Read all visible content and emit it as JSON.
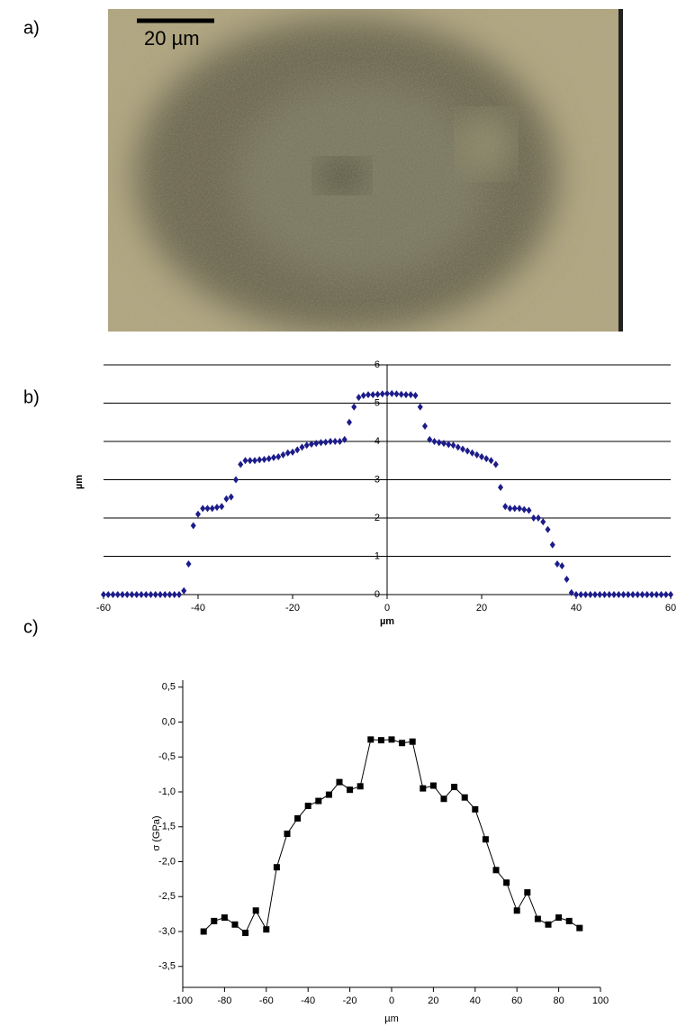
{
  "panels": [
    "a)",
    "b)",
    "c)"
  ],
  "scale_bar": "20 µm",
  "chart_data": [
    {
      "type": "scatter",
      "x_label": "µm",
      "y_label": "µm",
      "xlim": [
        -60,
        60
      ],
      "ylim": [
        0,
        6
      ],
      "xticks": [
        -60,
        -40,
        -20,
        0,
        20,
        40,
        60
      ],
      "yticks": [
        0,
        1,
        2,
        3,
        4,
        5,
        6
      ],
      "grid": true,
      "axes_at_origin": true,
      "marker": "diamond",
      "line": false,
      "x": [
        -60,
        -59,
        -58,
        -57,
        -56,
        -55,
        -54,
        -53,
        -52,
        -51,
        -50,
        -49,
        -48,
        -47,
        -46,
        -45,
        -44,
        -43,
        -42,
        -41,
        -40,
        -39,
        -38,
        -37,
        -36,
        -35,
        -34,
        -33,
        -32,
        -31,
        -30,
        -29,
        -28,
        -27,
        -26,
        -25,
        -24,
        -23,
        -22,
        -21,
        -20,
        -19,
        -18,
        -17,
        -16,
        -15,
        -14,
        -13,
        -12,
        -11,
        -10,
        -9,
        -8,
        -7,
        -6,
        -5,
        -4,
        -3,
        -2,
        -1,
        0,
        1,
        2,
        3,
        4,
        5,
        6,
        7,
        8,
        9,
        10,
        11,
        12,
        13,
        14,
        15,
        16,
        17,
        18,
        19,
        20,
        21,
        22,
        23,
        24,
        25,
        26,
        27,
        28,
        29,
        30,
        31,
        32,
        33,
        34,
        35,
        36,
        37,
        38,
        39,
        40,
        41,
        42,
        43,
        44,
        45,
        46,
        47,
        48,
        49,
        50,
        51,
        52,
        53,
        54,
        55,
        56,
        57,
        58,
        59,
        60
      ],
      "series": [
        {
          "color": "#1c1c8a",
          "values": [
            0,
            0,
            0,
            0,
            0,
            0,
            0,
            0,
            0,
            0,
            0,
            0,
            0,
            0,
            0,
            0,
            0,
            0.1,
            0.8,
            1.8,
            2.1,
            2.25,
            2.25,
            2.25,
            2.28,
            2.3,
            2.5,
            2.55,
            3.0,
            3.4,
            3.5,
            3.5,
            3.5,
            3.52,
            3.53,
            3.55,
            3.58,
            3.6,
            3.65,
            3.7,
            3.72,
            3.78,
            3.85,
            3.9,
            3.93,
            3.95,
            3.97,
            3.98,
            4.0,
            4.0,
            4.0,
            4.05,
            4.5,
            4.9,
            5.15,
            5.2,
            5.22,
            5.22,
            5.23,
            5.24,
            5.25,
            5.25,
            5.24,
            5.23,
            5.22,
            5.22,
            5.2,
            4.9,
            4.4,
            4.05,
            4.0,
            3.97,
            3.95,
            3.92,
            3.9,
            3.85,
            3.8,
            3.75,
            3.7,
            3.65,
            3.6,
            3.55,
            3.5,
            3.4,
            2.8,
            2.3,
            2.25,
            2.25,
            2.25,
            2.22,
            2.2,
            2.0,
            2.0,
            1.9,
            1.7,
            1.3,
            0.8,
            0.75,
            0.4,
            0.05,
            0,
            0,
            0,
            0,
            0,
            0,
            0,
            0,
            0,
            0,
            0,
            0,
            0,
            0,
            0,
            0,
            0,
            0,
            0,
            0,
            0
          ]
        }
      ]
    },
    {
      "type": "line",
      "x_label": "µm",
      "y_label": "σ (GPa)",
      "xlim": [
        -100,
        100
      ],
      "ylim": [
        -3.8,
        0.6
      ],
      "xticks": [
        -100,
        -80,
        -60,
        -40,
        -20,
        0,
        20,
        40,
        60,
        80,
        100
      ],
      "yticks": [
        {
          "value": 0.5,
          "label": "0,5"
        },
        {
          "value": 0,
          "label": "0,0"
        },
        {
          "value": -0.5,
          "label": "-0,5"
        },
        {
          "value": -1,
          "label": "-1,0"
        },
        {
          "value": -1.5,
          "label": "-1,5"
        },
        {
          "value": -2,
          "label": "-2,0"
        },
        {
          "value": -2.5,
          "label": "-2,5"
        },
        {
          "value": -3,
          "label": "-3,0"
        },
        {
          "value": -3.5,
          "label": "-3,5"
        }
      ],
      "grid": false,
      "axes_at_origin": false,
      "marker": "square",
      "line": true,
      "x": [
        -90,
        -85,
        -80,
        -75,
        -70,
        -65,
        -60,
        -55,
        -50,
        -45,
        -40,
        -35,
        -30,
        -25,
        -20,
        -15,
        -10,
        -5,
        0,
        5,
        10,
        15,
        20,
        25,
        30,
        35,
        40,
        45,
        50,
        55,
        60,
        65,
        70,
        75,
        80,
        85,
        90
      ],
      "series": [
        {
          "color": "#000000",
          "values": [
            -3.0,
            -2.85,
            -2.8,
            -2.9,
            -3.02,
            -2.7,
            -2.97,
            -2.08,
            -1.6,
            -1.38,
            -1.2,
            -1.13,
            -1.04,
            -0.86,
            -0.97,
            -0.92,
            -0.25,
            -0.26,
            -0.25,
            -0.3,
            -0.28,
            -0.95,
            -0.91,
            -1.1,
            -0.93,
            -1.08,
            -1.25,
            -1.68,
            -2.12,
            -2.3,
            -2.7,
            -2.44,
            -2.82,
            -2.9,
            -2.8,
            -2.85,
            -2.95
          ]
        }
      ]
    }
  ]
}
